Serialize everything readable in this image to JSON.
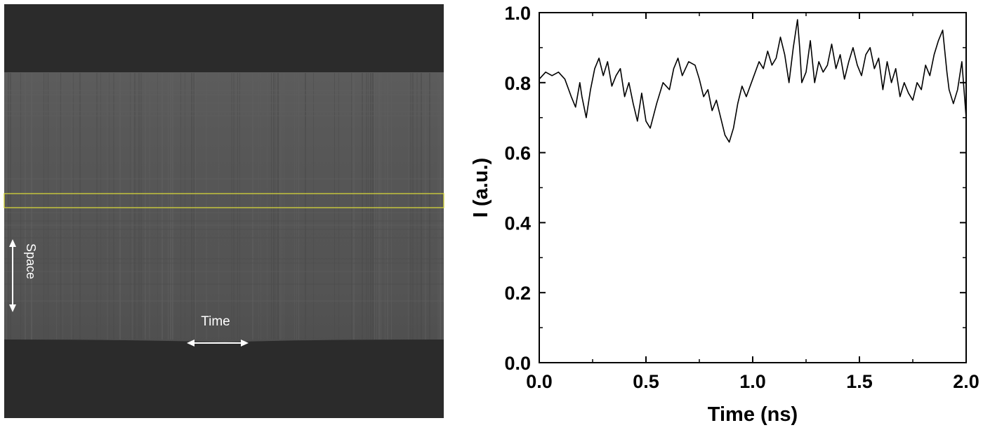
{
  "streak_image": {
    "space_label": "Space",
    "time_label": "Time",
    "highlight_color": "#d4d43a",
    "arrow_color": "#ffffff"
  },
  "chart_data": {
    "type": "line",
    "xlabel": "Time (ns)",
    "ylabel": "I (a.u.)",
    "xlim": [
      0.0,
      2.0
    ],
    "ylim": [
      0.0,
      1.0
    ],
    "xticks": [
      "0.0",
      "0.5",
      "1.0",
      "1.5",
      "2.0"
    ],
    "yticks": [
      "0.0",
      "0.2",
      "0.4",
      "0.6",
      "0.8",
      "1.0"
    ],
    "grid": false,
    "series": [
      {
        "color": "#000000",
        "x": [
          0.0,
          0.03,
          0.06,
          0.09,
          0.12,
          0.15,
          0.17,
          0.19,
          0.2,
          0.22,
          0.24,
          0.26,
          0.28,
          0.3,
          0.32,
          0.34,
          0.36,
          0.38,
          0.4,
          0.42,
          0.44,
          0.46,
          0.48,
          0.5,
          0.52,
          0.55,
          0.58,
          0.61,
          0.63,
          0.65,
          0.67,
          0.7,
          0.73,
          0.75,
          0.77,
          0.79,
          0.81,
          0.83,
          0.85,
          0.87,
          0.89,
          0.91,
          0.93,
          0.95,
          0.97,
          1.0,
          1.03,
          1.05,
          1.07,
          1.09,
          1.11,
          1.13,
          1.15,
          1.17,
          1.19,
          1.21,
          1.22,
          1.23,
          1.25,
          1.27,
          1.29,
          1.31,
          1.33,
          1.35,
          1.37,
          1.39,
          1.41,
          1.43,
          1.45,
          1.47,
          1.49,
          1.51,
          1.53,
          1.55,
          1.57,
          1.59,
          1.61,
          1.63,
          1.65,
          1.67,
          1.69,
          1.71,
          1.73,
          1.75,
          1.77,
          1.79,
          1.81,
          1.83,
          1.85,
          1.87,
          1.89,
          1.91,
          1.92,
          1.94,
          1.96,
          1.98,
          2.0
        ],
        "values": [
          0.81,
          0.83,
          0.82,
          0.83,
          0.81,
          0.76,
          0.73,
          0.8,
          0.76,
          0.7,
          0.78,
          0.84,
          0.87,
          0.82,
          0.86,
          0.79,
          0.82,
          0.84,
          0.76,
          0.8,
          0.74,
          0.69,
          0.77,
          0.69,
          0.67,
          0.74,
          0.8,
          0.78,
          0.84,
          0.87,
          0.82,
          0.86,
          0.85,
          0.81,
          0.76,
          0.78,
          0.72,
          0.75,
          0.7,
          0.65,
          0.63,
          0.67,
          0.74,
          0.79,
          0.76,
          0.81,
          0.86,
          0.84,
          0.89,
          0.85,
          0.87,
          0.93,
          0.88,
          0.8,
          0.9,
          0.98,
          0.9,
          0.8,
          0.83,
          0.92,
          0.8,
          0.86,
          0.83,
          0.85,
          0.91,
          0.84,
          0.88,
          0.81,
          0.86,
          0.9,
          0.85,
          0.82,
          0.88,
          0.9,
          0.84,
          0.87,
          0.78,
          0.86,
          0.8,
          0.84,
          0.76,
          0.8,
          0.77,
          0.75,
          0.8,
          0.78,
          0.85,
          0.82,
          0.88,
          0.92,
          0.95,
          0.83,
          0.78,
          0.74,
          0.78,
          0.86,
          0.7
        ]
      }
    ]
  }
}
